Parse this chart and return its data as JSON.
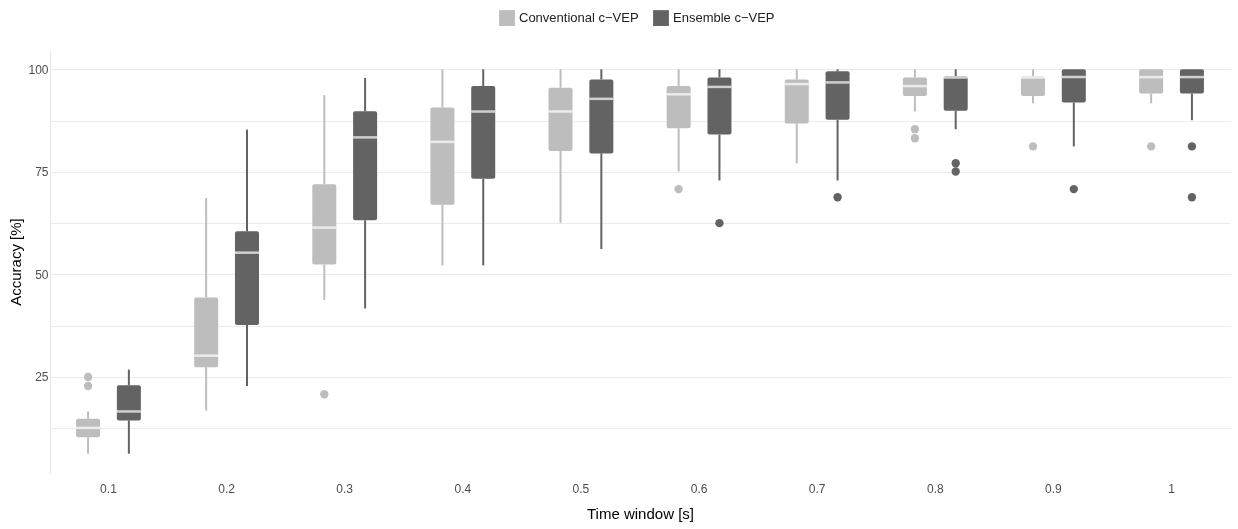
{
  "chart_data": {
    "type": "box",
    "xlabel": "Time window [s]",
    "ylabel": "Accuracy [%]",
    "categories": [
      "0.1",
      "0.2",
      "0.3",
      "0.4",
      "0.5",
      "0.6",
      "0.7",
      "0.8",
      "0.9",
      "1"
    ],
    "ylim": [
      1.6,
      104.7
    ],
    "yticks": [
      {
        "value": 12.5,
        "label": null
      },
      25,
      {
        "value": 37.5,
        "label": null
      },
      50,
      {
        "value": 62.5,
        "label": null
      },
      75,
      {
        "value": 87.5,
        "label": null
      },
      100
    ],
    "grid": "y",
    "legend": "top",
    "series": [
      {
        "name": "Conventional c−VEP",
        "color": "#bdbdbd",
        "boxes": [
          {
            "low": 6.3,
            "q1": 10.3,
            "median": 12.6,
            "q3": 14.8,
            "high": 16.6,
            "outliers": [
              25,
              22.8
            ]
          },
          {
            "low": 16.8,
            "q1": 27.4,
            "median": 30.2,
            "q3": 44.4,
            "high": 68.6
          },
          {
            "low": 43.8,
            "q1": 52.4,
            "median": 61.4,
            "q3": 72.0,
            "high": 93.7,
            "outliers": [
              20.8
            ]
          },
          {
            "low": 52.2,
            "q1": 67.0,
            "median": 82.3,
            "q3": 90.7,
            "high": 100
          },
          {
            "low": 62.6,
            "q1": 80.1,
            "median": 89.7,
            "q3": 95.5,
            "high": 100
          },
          {
            "low": 75.1,
            "q1": 85.6,
            "median": 93.9,
            "q3": 95.9,
            "high": 100,
            "outliers": [
              70.8
            ]
          },
          {
            "low": 77.1,
            "q1": 86.8,
            "median": 96.4,
            "q3": 97.5,
            "high": 100
          },
          {
            "low": 89.7,
            "q1": 93.5,
            "median": 95.9,
            "q3": 98.0,
            "high": 100,
            "outliers": [
              85.4,
              83.2
            ]
          },
          {
            "low": 91.7,
            "q1": 93.5,
            "median": 98.0,
            "q3": 98.3,
            "high": 100,
            "outliers": [
              81.2
            ]
          },
          {
            "low": 91.7,
            "q1": 94.1,
            "median": 98.1,
            "q3": 100,
            "high": 100,
            "outliers": [
              81.2
            ]
          }
        ]
      },
      {
        "name": "Ensemble c−VEP",
        "color": "#636363",
        "boxes": [
          {
            "low": 6.3,
            "q1": 14.4,
            "median": 16.6,
            "q3": 23.0,
            "high": 26.8
          },
          {
            "low": 22.8,
            "q1": 37.7,
            "median": 55.3,
            "q3": 60.5,
            "high": 85.3
          },
          {
            "low": 41.7,
            "q1": 63.2,
            "median": 83.4,
            "q3": 89.8,
            "high": 97.9
          },
          {
            "low": 52.2,
            "q1": 73.3,
            "median": 89.7,
            "q3": 95.9,
            "high": 100
          },
          {
            "low": 56.2,
            "q1": 79.5,
            "median": 92.8,
            "q3": 97.5,
            "high": 100
          },
          {
            "low": 72.9,
            "q1": 84.1,
            "median": 95.7,
            "q3": 98.0,
            "high": 100,
            "outliers": [
              62.5
            ]
          },
          {
            "low": 72.9,
            "q1": 87.7,
            "median": 96.8,
            "q3": 99.5,
            "high": 100,
            "outliers": [
              68.8
            ]
          },
          {
            "low": 85.4,
            "q1": 89.9,
            "median": 98.0,
            "q3": 98.3,
            "high": 100,
            "outliers": [
              77.1,
              75.1
            ]
          },
          {
            "low": 81.2,
            "q1": 91.9,
            "median": 98.1,
            "q3": 100,
            "high": 100,
            "outliers": [
              70.8
            ]
          },
          {
            "low": 87.6,
            "q1": 94.1,
            "median": 98.1,
            "q3": 100,
            "high": 100,
            "outliers": [
              81.2,
              68.8
            ]
          }
        ]
      }
    ]
  }
}
